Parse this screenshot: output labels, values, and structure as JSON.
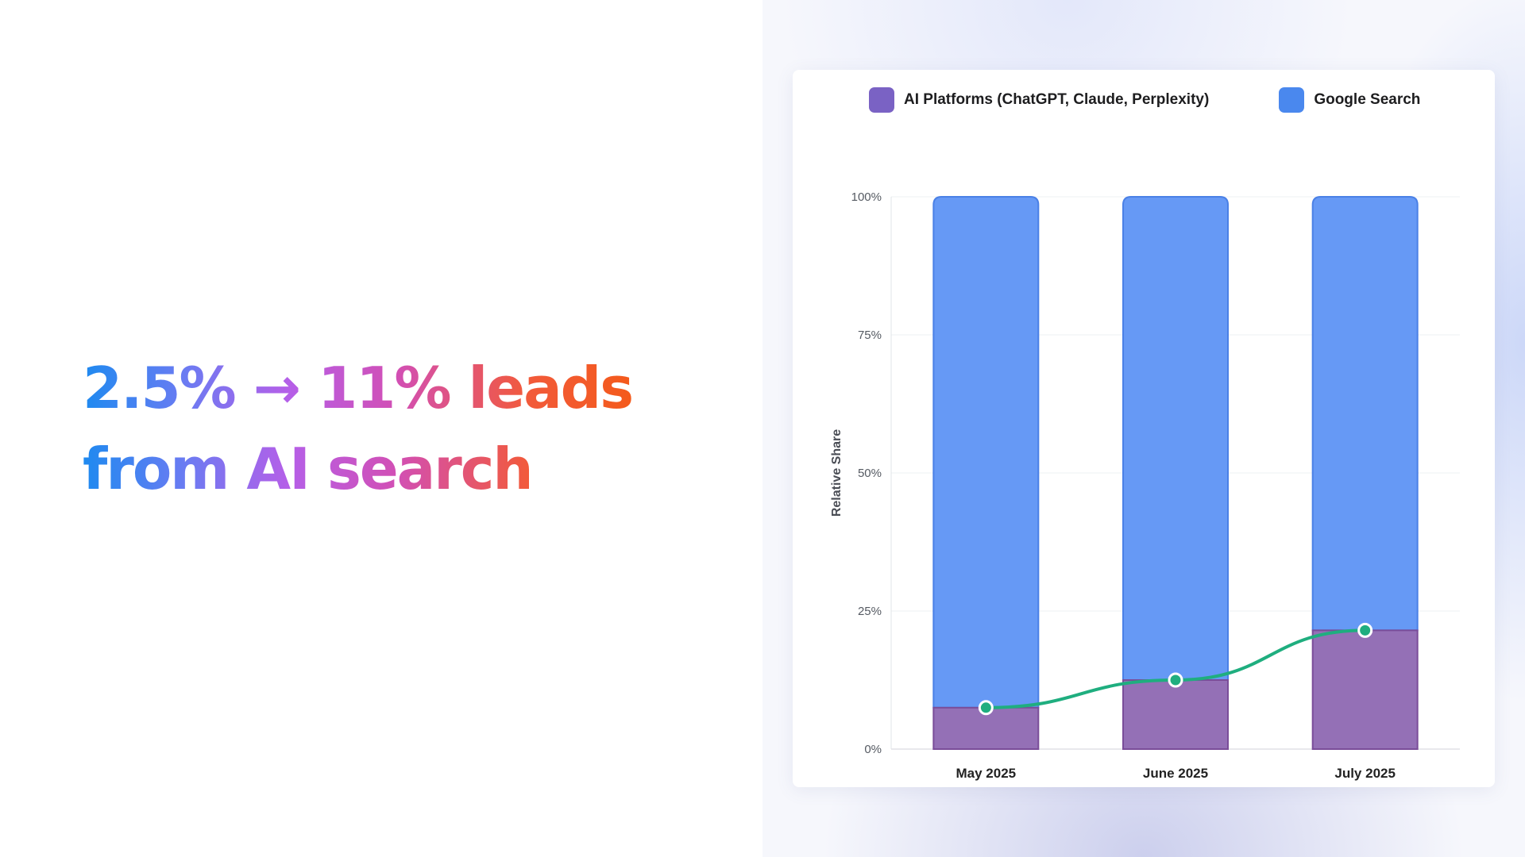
{
  "headline": {
    "line1": "2.5% → 11% leads",
    "line2": "from AI search"
  },
  "chart_data": {
    "type": "bar",
    "stacked": true,
    "categories": [
      "May 2025",
      "June 2025",
      "July 2025"
    ],
    "series": [
      {
        "name": "AI Platforms (ChatGPT, Claude, Perplexity)",
        "values": [
          7.5,
          12.5,
          21.5
        ],
        "color": "#9470b6",
        "edge": "#7a4d99"
      },
      {
        "name": "Google Search",
        "values": [
          92.5,
          87.5,
          78.5
        ],
        "color": "#6699f5",
        "edge": "#4a80e6"
      }
    ],
    "trend_line": {
      "values": [
        7.5,
        12.5,
        21.5
      ],
      "color": "#1fae7f"
    },
    "ylabel": "Relative Share",
    "xlabel": "",
    "ylim": [
      0,
      100
    ],
    "yticks": [
      "0%",
      "25%",
      "50%",
      "75%",
      "100%"
    ],
    "grid": true,
    "legend_position": "top",
    "legend_swatches": [
      "#7a62c4",
      "#4a88ee"
    ]
  }
}
